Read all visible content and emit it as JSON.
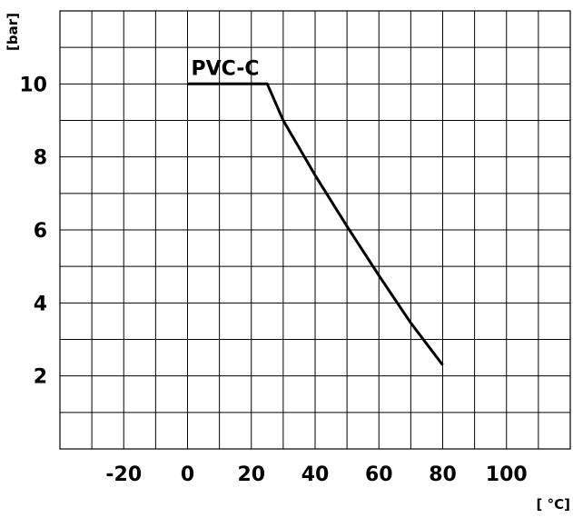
{
  "chart_data": {
    "type": "line",
    "title": "",
    "xlabel": "[ °C]",
    "ylabel": "[bar]",
    "xlim": [
      -40,
      120
    ],
    "ylim": [
      0,
      12
    ],
    "x_ticks": [
      -30,
      -20,
      -10,
      0,
      10,
      20,
      30,
      40,
      50,
      60,
      70,
      80,
      90,
      100,
      110
    ],
    "x_tick_labels": [
      -20,
      0,
      20,
      40,
      60,
      80,
      100
    ],
    "y_ticks": [
      1,
      2,
      3,
      4,
      5,
      6,
      7,
      8,
      9,
      10,
      11
    ],
    "y_tick_labels": [
      2,
      4,
      6,
      8,
      10
    ],
    "grid": true,
    "series": [
      {
        "name": "PVC-C",
        "color": "#000000",
        "x": [
          0,
          25,
          30,
          40,
          50,
          60,
          70,
          80
        ],
        "y": [
          10,
          10,
          9.0,
          7.5,
          6.1,
          4.75,
          3.45,
          2.3
        ]
      }
    ]
  }
}
